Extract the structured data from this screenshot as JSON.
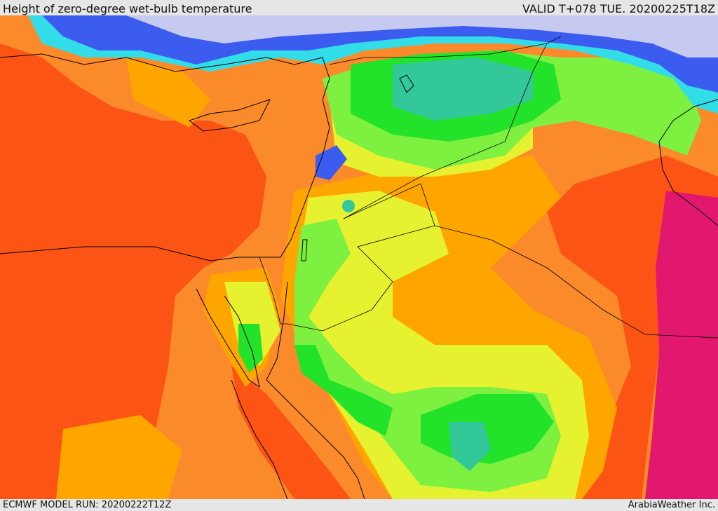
{
  "header": {
    "title": "Height of zero-degree wet-bulb temperature",
    "valid": "VALID T+078 TUE. 20200225T18Z"
  },
  "footer": {
    "model_run": "ECMWF MODEL RUN: 20200222T12Z",
    "credit": "ArabiaWeather Inc."
  },
  "colors": {
    "lowest": "#c6c9f0",
    "blue": "#3c5cf0",
    "cyan": "#33dde8",
    "teal": "#33c89a",
    "green": "#22e22a",
    "light_green": "#7ef040",
    "yellow": "#e6f230",
    "orange_light": "#ffa500",
    "orange": "#fb8a2a",
    "red_orange": "#fb5414",
    "magenta": "#e2186e",
    "border": "#000000"
  }
}
